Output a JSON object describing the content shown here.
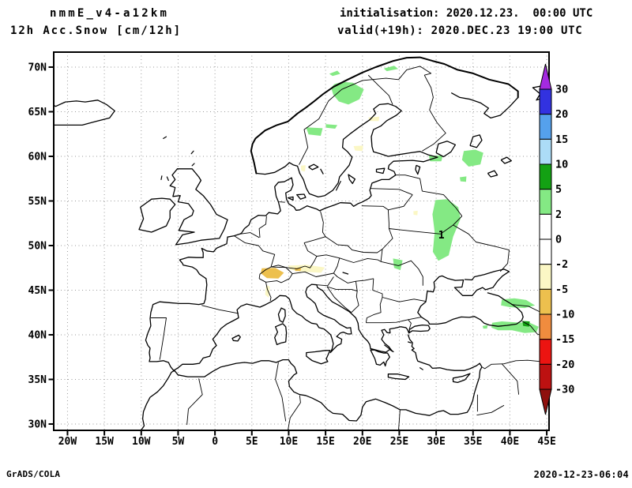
{
  "header": {
    "model_title": "nmmE_v4-a12km",
    "field_title": "12h Acc.Snow [cm/12h]",
    "init_label": "initialisation: 2020.12.23.  00:00 UTC",
    "valid_label": "valid(+19h): 2020.DEC.23 19:00 UTC"
  },
  "footer": {
    "credit": "GrADS/COLA",
    "timestamp": "2020-12-23-06:04"
  },
  "chart_data": {
    "type": "filled-contour-map",
    "title": "12h Acc.Snow [cm/12h]",
    "projection": "equirectangular-latlon",
    "lon_range": [
      -21.87,
      45.33
    ],
    "lat_range": [
      29.29,
      71.68
    ],
    "grid": true,
    "x_ticks": [
      {
        "value": -20,
        "label": "20W"
      },
      {
        "value": -15,
        "label": "15W"
      },
      {
        "value": -10,
        "label": "10W"
      },
      {
        "value": -5,
        "label": "5W"
      },
      {
        "value": 0,
        "label": "0"
      },
      {
        "value": 5,
        "label": "5E"
      },
      {
        "value": 10,
        "label": "10E"
      },
      {
        "value": 15,
        "label": "15E"
      },
      {
        "value": 20,
        "label": "20E"
      },
      {
        "value": 25,
        "label": "25E"
      },
      {
        "value": 30,
        "label": "30E"
      },
      {
        "value": 35,
        "label": "35E"
      },
      {
        "value": 40,
        "label": "40E"
      },
      {
        "value": 45,
        "label": "45E"
      }
    ],
    "y_ticks": [
      {
        "value": 70,
        "label": "70N"
      },
      {
        "value": 65,
        "label": "65N"
      },
      {
        "value": 60,
        "label": "60N"
      },
      {
        "value": 55,
        "label": "55N"
      },
      {
        "value": 50,
        "label": "50N"
      },
      {
        "value": 45,
        "label": "45N"
      },
      {
        "value": 40,
        "label": "40N"
      },
      {
        "value": 35,
        "label": "35N"
      },
      {
        "value": 30,
        "label": "30N"
      }
    ],
    "colorbar": {
      "boundary_labels": [
        "30",
        "20",
        "15",
        "10",
        "5",
        "2",
        "0",
        "-2",
        "-5",
        "-10",
        "-15",
        "-20",
        "-30"
      ],
      "segment_colors_top_to_bottom": [
        "#3232E0",
        "#55A1EC",
        "#ACDCF7",
        "#13A113",
        "#84E984",
        "#FFFFFF",
        "#FFFFFF",
        "#FBF7C5",
        "#EDC04E",
        "#F08C3E",
        "#EC1411",
        "#BD1111"
      ],
      "arrow_top_color": "#A42AE0",
      "arrow_bottom_color": "#8F100D"
    },
    "contour_labels": [
      {
        "text": "1",
        "lon": 30.7,
        "lat": 51.2
      }
    ],
    "snow_regions": [
      {
        "level": "2 to 5",
        "color": "#84E984",
        "poly": [
          [
            16.2,
            68.1
          ],
          [
            17.3,
            68.35
          ],
          [
            18.7,
            68.25
          ],
          [
            20.2,
            67.5
          ],
          [
            19.6,
            66.4
          ],
          [
            18.1,
            65.8
          ],
          [
            16.8,
            66.15
          ],
          [
            16.05,
            66.9
          ],
          [
            15.75,
            67.7
          ]
        ]
      },
      {
        "level": "2 to 5",
        "color": "#84E984",
        "poly": [
          [
            15.5,
            69.25
          ],
          [
            16.6,
            69.6
          ],
          [
            17.0,
            69.25
          ],
          [
            15.95,
            69.0
          ]
        ]
      },
      {
        "level": "2 to 5",
        "color": "#84E984",
        "poly": [
          [
            22.9,
            69.85
          ],
          [
            24.3,
            70.15
          ],
          [
            24.85,
            69.8
          ],
          [
            23.3,
            69.55
          ]
        ]
      },
      {
        "level": "2 to 5",
        "color": "#84E984",
        "poly": [
          [
            12.35,
            63.25
          ],
          [
            14.6,
            63.15
          ],
          [
            14.35,
            62.3
          ],
          [
            12.7,
            62.45
          ]
        ]
      },
      {
        "level": "2 to 5",
        "color": "#84E984",
        "poly": [
          [
            15.0,
            63.6
          ],
          [
            16.6,
            63.5
          ],
          [
            16.3,
            63.1
          ],
          [
            15.1,
            63.2
          ]
        ]
      },
      {
        "level": "2 to 5",
        "color": "#84E984",
        "poly": [
          [
            29.0,
            60.05
          ],
          [
            30.9,
            60.1
          ],
          [
            30.7,
            59.45
          ],
          [
            29.2,
            59.45
          ]
        ]
      },
      {
        "level": "2 to 5",
        "color": "#84E984",
        "poly": [
          [
            33.75,
            60.6
          ],
          [
            35.3,
            60.75
          ],
          [
            36.4,
            60.4
          ],
          [
            36.0,
            59.1
          ],
          [
            34.4,
            58.85
          ],
          [
            33.5,
            59.6
          ]
        ]
      },
      {
        "level": "2 to 5",
        "color": "#84E984",
        "poly": [
          [
            33.2,
            57.65
          ],
          [
            34.1,
            57.75
          ],
          [
            34.05,
            57.15
          ],
          [
            33.3,
            57.2
          ]
        ]
      },
      {
        "level": "2 to 5",
        "color": "#84E984",
        "poly": [
          [
            29.9,
            55.1
          ],
          [
            31.5,
            55.2
          ],
          [
            33.0,
            54.3
          ],
          [
            33.3,
            53.0
          ],
          [
            32.3,
            51.0
          ],
          [
            31.7,
            48.9
          ],
          [
            30.3,
            48.3
          ],
          [
            29.55,
            49.3
          ],
          [
            29.8,
            51.5
          ],
          [
            29.5,
            53.5
          ]
        ]
      },
      {
        "level": "2 to 5",
        "color": "#84E984",
        "poly": [
          [
            24.15,
            48.55
          ],
          [
            25.45,
            48.35
          ],
          [
            25.15,
            47.25
          ],
          [
            24.3,
            47.5
          ]
        ]
      },
      {
        "level": "2 to 5",
        "color": "#84E984",
        "poly": [
          [
            38.9,
            43.95
          ],
          [
            40.6,
            44.1
          ],
          [
            42.2,
            43.9
          ],
          [
            43.4,
            43.3
          ],
          [
            42.0,
            43.0
          ],
          [
            40.0,
            43.1
          ],
          [
            38.8,
            43.3
          ]
        ]
      },
      {
        "level": "2 to 5",
        "color": "#84E984",
        "poly": [
          [
            37.6,
            41.35
          ],
          [
            38.9,
            41.5
          ],
          [
            40.8,
            41.4
          ],
          [
            42.7,
            41.35
          ],
          [
            43.9,
            40.9
          ],
          [
            43.6,
            40.3
          ],
          [
            42.0,
            40.2
          ],
          [
            40.3,
            40.5
          ],
          [
            38.4,
            40.5
          ],
          [
            37.5,
            40.8
          ]
        ]
      },
      {
        "level": "2 to 5",
        "color": "#84E984",
        "poly": [
          [
            44.4,
            42.4
          ],
          [
            45.35,
            42.5
          ],
          [
            45.35,
            41.5
          ],
          [
            44.5,
            41.6
          ]
        ]
      },
      {
        "level": "2 to 5",
        "color": "#84E984",
        "poly": [
          [
            44.0,
            39.9
          ],
          [
            45.35,
            40.2
          ],
          [
            45.35,
            39.3
          ],
          [
            44.3,
            39.4
          ]
        ]
      },
      {
        "level": "2 to 5",
        "color": "#84E984",
        "poly": [
          [
            36.3,
            41.0
          ],
          [
            37.0,
            41.1
          ],
          [
            36.9,
            40.7
          ],
          [
            36.4,
            40.7
          ]
        ]
      },
      {
        "level": "5 to 10",
        "color": "#13A113",
        "poly": [
          [
            41.7,
            41.55
          ],
          [
            42.7,
            41.5
          ],
          [
            42.6,
            40.9
          ],
          [
            41.8,
            41.0
          ]
        ]
      },
      {
        "level": "5 to 10",
        "color": "#13A113",
        "poly": [
          [
            44.3,
            40.5
          ],
          [
            45.1,
            40.55
          ],
          [
            45.05,
            39.95
          ],
          [
            44.4,
            39.95
          ]
        ]
      },
      {
        "level": "-5 to -2",
        "color": "#FBF7C5",
        "poly": [
          [
            9.9,
            47.75
          ],
          [
            12.4,
            47.85
          ],
          [
            14.9,
            47.55
          ],
          [
            14.4,
            46.95
          ],
          [
            12.0,
            47.05
          ],
          [
            10.2,
            47.3
          ]
        ]
      },
      {
        "level": "-5 to -2",
        "color": "#FBF7C5",
        "poly": [
          [
            20.8,
            64.35
          ],
          [
            22.3,
            64.45
          ],
          [
            22.2,
            63.95
          ],
          [
            21.0,
            63.95
          ]
        ]
      },
      {
        "level": "-5 to -2",
        "color": "#FBF7C5",
        "poly": [
          [
            18.8,
            61.15
          ],
          [
            20.1,
            61.2
          ],
          [
            20.0,
            60.6
          ],
          [
            19.0,
            60.65
          ]
        ]
      },
      {
        "level": "-5 to -2",
        "color": "#FBF7C5",
        "poly": [
          [
            6.95,
            45.6
          ],
          [
            7.45,
            45.4
          ],
          [
            7.3,
            44.15
          ],
          [
            6.8,
            44.5
          ]
        ]
      },
      {
        "level": "-5 to -2",
        "color": "#FBF7C5",
        "poly": [
          [
            11.65,
            58.95
          ],
          [
            12.3,
            59.0
          ],
          [
            12.2,
            58.3
          ],
          [
            11.7,
            58.4
          ]
        ]
      },
      {
        "level": "-5 to -2",
        "color": "#FBF7C5",
        "poly": [
          [
            26.9,
            53.85
          ],
          [
            27.5,
            53.9
          ],
          [
            27.45,
            53.4
          ],
          [
            26.95,
            53.45
          ]
        ]
      },
      {
        "level": "-10 to -5",
        "color": "#EDC04E",
        "poly": [
          [
            6.35,
            47.45
          ],
          [
            8.2,
            47.5
          ],
          [
            9.35,
            46.95
          ],
          [
            8.6,
            46.3
          ],
          [
            7.05,
            46.35
          ],
          [
            6.2,
            46.9
          ]
        ]
      },
      {
        "level": "-10 to -5",
        "color": "#EDC04E",
        "poly": [
          [
            10.8,
            47.5
          ],
          [
            11.7,
            47.5
          ],
          [
            11.6,
            47.15
          ],
          [
            10.9,
            47.15
          ]
        ]
      }
    ]
  },
  "colors": {
    "background": "#FFFFFF",
    "coastline": "#000000",
    "grid": "#9A9A9A",
    "text": "#000000"
  }
}
